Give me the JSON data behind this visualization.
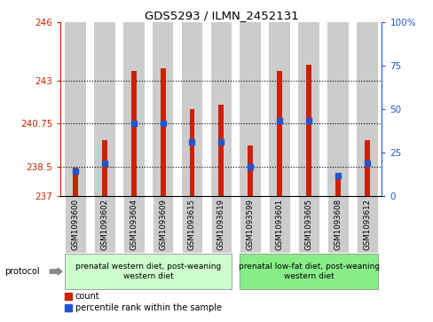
{
  "title": "GDS5293 / ILMN_2452131",
  "samples": [
    "GSM1093600",
    "GSM1093602",
    "GSM1093604",
    "GSM1093609",
    "GSM1093615",
    "GSM1093619",
    "GSM1093599",
    "GSM1093601",
    "GSM1093605",
    "GSM1093608",
    "GSM1093612"
  ],
  "red_values": [
    238.45,
    239.88,
    243.5,
    243.62,
    241.5,
    241.73,
    239.62,
    243.5,
    243.82,
    237.9,
    239.88
  ],
  "blue_values": [
    238.28,
    238.68,
    240.75,
    240.75,
    239.78,
    239.78,
    238.5,
    240.9,
    240.9,
    238.05,
    238.68
  ],
  "ymin": 237,
  "ymax": 246,
  "yticks_left": [
    237,
    238.5,
    240.75,
    243,
    246
  ],
  "yticks_right": [
    0,
    25,
    50,
    75,
    100
  ],
  "ytick_right_labels": [
    "0",
    "25",
    "50",
    "75",
    "100%"
  ],
  "hlines": [
    238.5,
    240.75,
    243
  ],
  "group1_label": "prenatal western diet, post-weaning\nwestern diet",
  "group2_label": "prenatal low-fat diet, post-weaning\nwestern diet",
  "group1_count": 6,
  "group2_count": 5,
  "protocol_label": "protocol",
  "legend_red": "count",
  "legend_blue": "percentile rank within the sample",
  "bar_color": "#cc2200",
  "blue_color": "#2255cc",
  "group1_bg": "#ccffcc",
  "group2_bg": "#88ee88",
  "col_bg": "#cccccc",
  "figsize": [
    4.89,
    3.63
  ],
  "dpi": 100
}
